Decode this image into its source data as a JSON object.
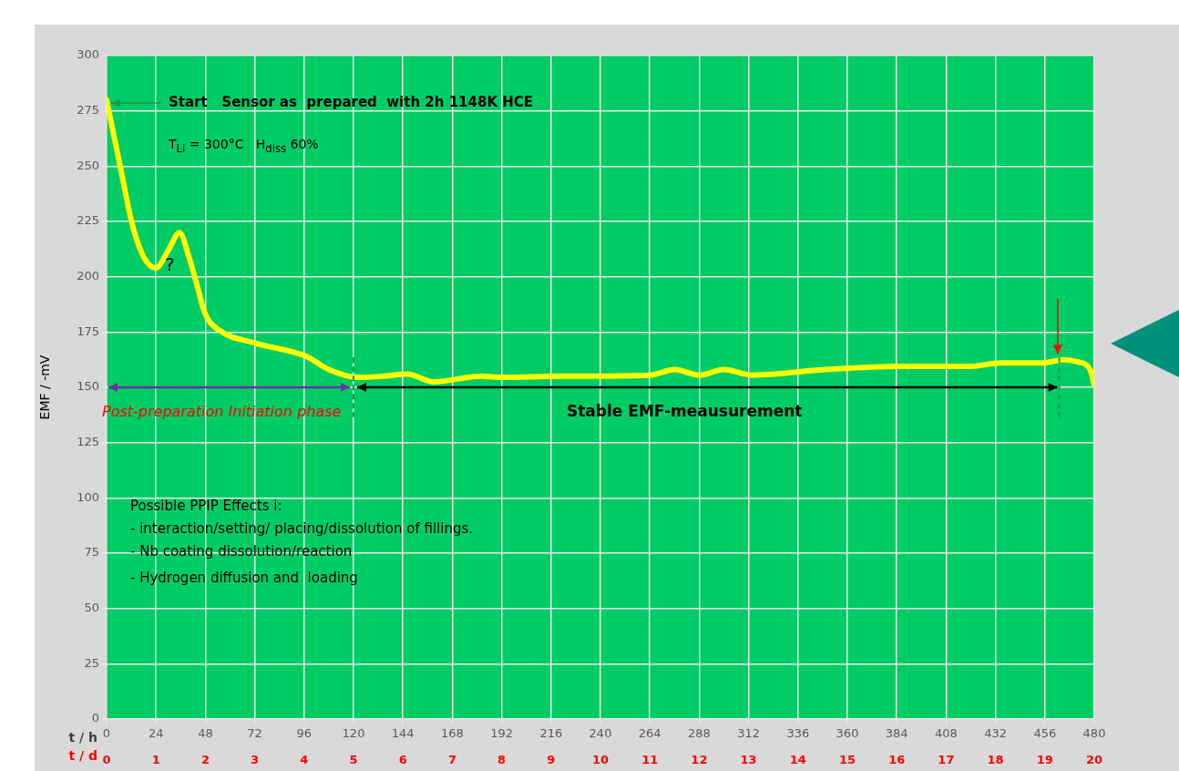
{
  "chart_data": {
    "type": "line",
    "xlabel": "t / h",
    "x2label": "t / d",
    "ylabel": "EMF / -mV",
    "series": [
      {
        "color": "#ffff00",
        "x": [
          0,
          6.6,
          12.4,
          18,
          24,
          30,
          35.4,
          40,
          44,
          48,
          54.5,
          72,
          97,
          108,
          122,
          134,
          146,
          159,
          182,
          192,
          220,
          264,
          276,
          288,
          300,
          314,
          349,
          385,
          420,
          434,
          455,
          465,
          472,
          478,
          480
        ],
        "values": [
          280,
          250,
          224,
          209,
          204,
          212,
          220,
          209,
          196,
          183,
          176,
          170,
          164,
          158,
          154.5,
          155,
          156,
          152.5,
          155,
          154.5,
          155,
          155.5,
          158,
          155.5,
          158,
          155.5,
          158,
          159.5,
          159.5,
          161,
          161,
          162.5,
          161.5,
          158,
          151
        ]
      }
    ],
    "xlim": [
      0,
      480
    ],
    "xticks": [
      0,
      24,
      48,
      72,
      96,
      120,
      144,
      168,
      192,
      216,
      240,
      264,
      288,
      312,
      336,
      360,
      384,
      408,
      432,
      456,
      480
    ],
    "x2lim": [
      0,
      20
    ],
    "x2ticks": [
      0,
      1,
      2,
      3,
      4,
      5,
      6,
      7,
      8,
      9,
      10,
      11,
      12,
      13,
      14,
      15,
      16,
      17,
      18,
      19,
      20
    ],
    "ylim": [
      0,
      300
    ],
    "yticks": [
      0,
      25,
      50,
      75,
      100,
      125,
      150,
      175,
      200,
      225,
      250,
      275,
      300
    ],
    "grid": true,
    "legend": false,
    "marker": "none",
    "line_style": "solid",
    "annotations": [
      {
        "text": "Start   Sensor as  prepared  with 2h 1148K HCE",
        "x": 0,
        "y": 280
      },
      "T$_{Li}$ = 300°C   H$_{diss}$ 60%",
      "?",
      "Post-preparation Initiation phase",
      "Stable EMF-meausurement",
      "Possible PPIP Effects i:",
      "- interaction/setting/ placing/dissolution of fillings.",
      "- Nb coating dissolution/reaction",
      "- Hydrogen diffusion and  loading"
    ],
    "ref_lines": [
      {
        "axis": "x",
        "value": 120,
        "color": "#1a9850",
        "line_style": "dashed"
      },
      {
        "axis": "x",
        "value": 463,
        "color": "#1a9850",
        "line_style": "dashed"
      }
    ]
  }
}
